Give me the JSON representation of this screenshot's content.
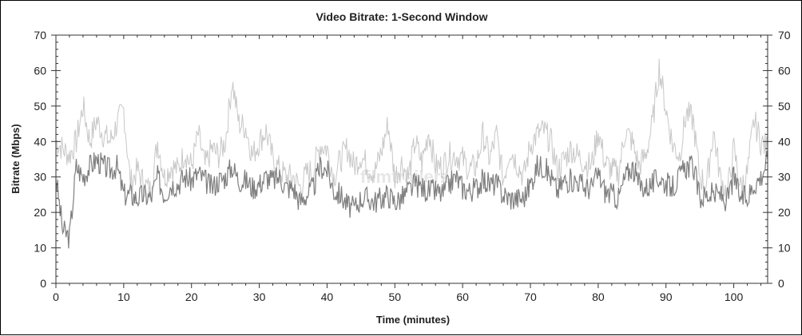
{
  "chart_data": {
    "type": "line",
    "title": "Video Bitrate: 1-Second Window",
    "xlabel": "Time (minutes)",
    "ylabel": "Bitrate (Mbps)",
    "xlim": [
      0,
      105
    ],
    "ylim": [
      0,
      70
    ],
    "x_ticks": [
      0,
      10,
      20,
      30,
      40,
      50,
      60,
      70,
      80,
      90,
      100
    ],
    "y_ticks": [
      0,
      10,
      20,
      30,
      40,
      50,
      60,
      70
    ],
    "right_axis_mirrored": true,
    "grid": false,
    "colors": {
      "mean": "#7f7f7f",
      "peak": "#c8c8c8"
    },
    "watermark": "filmtrailerz",
    "x": [
      0,
      1,
      2,
      3,
      4,
      5,
      6,
      7,
      8,
      9,
      10,
      11,
      12,
      13,
      14,
      15,
      16,
      17,
      18,
      19,
      20,
      21,
      22,
      23,
      24,
      25,
      26,
      27,
      28,
      29,
      30,
      31,
      32,
      33,
      34,
      35,
      36,
      37,
      38,
      39,
      40,
      41,
      42,
      43,
      44,
      45,
      46,
      47,
      48,
      49,
      50,
      51,
      52,
      53,
      54,
      55,
      56,
      57,
      58,
      59,
      60,
      61,
      62,
      63,
      64,
      65,
      66,
      67,
      68,
      69,
      70,
      71,
      72,
      73,
      74,
      75,
      76,
      77,
      78,
      79,
      80,
      81,
      82,
      83,
      84,
      85,
      86,
      87,
      88,
      89,
      90,
      91,
      92,
      93,
      94,
      95,
      96,
      97,
      98,
      99,
      100,
      101,
      102,
      103,
      104,
      105
    ],
    "series": [
      {
        "values": [
          30,
          15,
          13,
          33,
          30,
          33,
          35,
          33,
          32,
          33,
          25,
          25,
          24,
          25,
          24,
          30,
          25,
          28,
          28,
          30,
          29,
          31,
          29,
          27,
          29,
          30,
          33,
          29,
          29,
          27,
          28,
          30,
          29,
          30,
          27,
          27,
          23,
          25,
          27,
          33,
          32,
          26,
          25,
          22,
          21,
          24,
          24,
          23,
          24,
          25,
          23,
          24,
          26,
          28,
          27,
          26,
          26,
          25,
          28,
          30,
          27,
          26,
          27,
          29,
          28,
          28,
          25,
          24,
          24,
          24,
          28,
          33,
          33,
          30,
          26,
          29,
          29,
          29,
          27,
          27,
          31,
          26,
          25,
          24,
          30,
          33,
          28,
          27,
          28,
          30,
          28,
          27,
          30,
          33,
          33,
          24,
          25,
          25,
          25,
          23,
          30,
          24,
          24,
          28,
          30,
          35
        ]
      },
      {
        "values": [
          40,
          38,
          36,
          40,
          50,
          40,
          46,
          42,
          40,
          45,
          49,
          28,
          32,
          28,
          26,
          40,
          30,
          33,
          32,
          37,
          33,
          42,
          33,
          38,
          36,
          40,
          57,
          45,
          44,
          36,
          40,
          43,
          35,
          32,
          30,
          30,
          27,
          31,
          32,
          39,
          38,
          30,
          35,
          38,
          33,
          36,
          33,
          31,
          37,
          45,
          30,
          34,
          30,
          40,
          34,
          43,
          33,
          33,
          36,
          36,
          35,
          32,
          33,
          42,
          35,
          42,
          29,
          38,
          34,
          30,
          39,
          42,
          43,
          40,
          32,
          35,
          38,
          36,
          34,
          33,
          43,
          34,
          32,
          31,
          43,
          40,
          33,
          36,
          45,
          61,
          49,
          39,
          36,
          48,
          46,
          30,
          28,
          43,
          30,
          25,
          38,
          27,
          31,
          46,
          40,
          38
        ]
      }
    ]
  }
}
